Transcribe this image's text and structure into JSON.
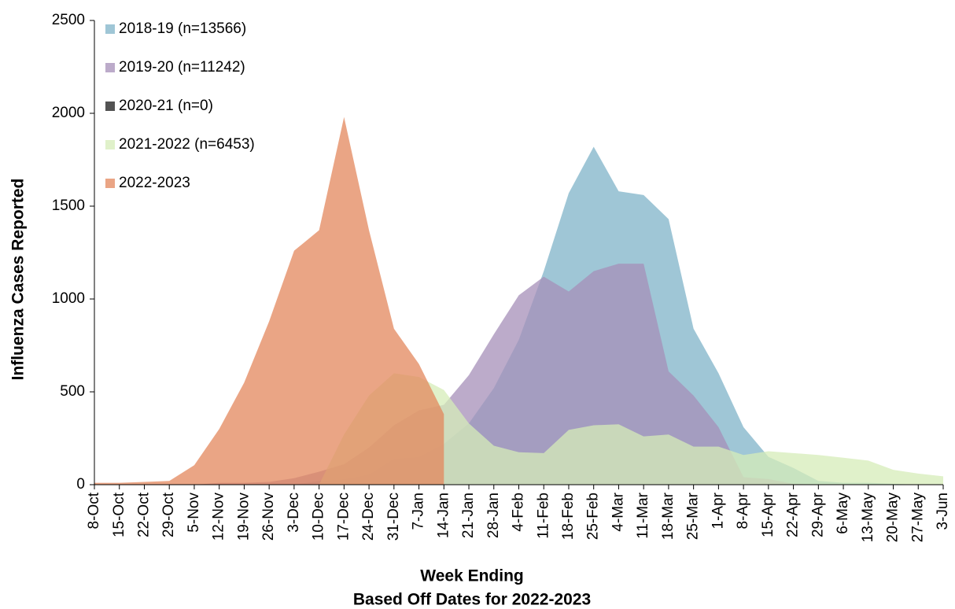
{
  "chart_data": {
    "type": "area",
    "ylabel": "Influenza Cases Reported",
    "xlabel": [
      "Week Ending",
      "Based Off Dates for 2022-2023"
    ],
    "categories": [
      "8-Oct",
      "15-Oct",
      "22-Oct",
      "29-Oct",
      "5-Nov",
      "12-Nov",
      "19-Nov",
      "26-Nov",
      "3-Dec",
      "10-Dec",
      "17-Dec",
      "24-Dec",
      "31-Dec",
      "7-Jan",
      "14-Jan",
      "21-Jan",
      "28-Jan",
      "4-Feb",
      "11-Feb",
      "18-Feb",
      "25-Feb",
      "4-Mar",
      "11-Mar",
      "18-Mar",
      "25-Mar",
      "1-Apr",
      "8-Apr",
      "15-Apr",
      "22-Apr",
      "29-Apr",
      "6-May",
      "13-May",
      "20-May",
      "27-May",
      "3-Jun"
    ],
    "ylim": [
      0,
      2500
    ],
    "yticks": [
      0,
      500,
      1000,
      1500,
      2000,
      2500
    ],
    "opacity": 0.75,
    "series": [
      {
        "name": "2018-19 (n=13566)",
        "color": "#7fb3c8",
        "values": [
          0,
          0,
          0,
          0,
          0,
          0,
          0,
          0,
          0,
          20,
          30,
          55,
          140,
          150,
          220,
          330,
          520,
          780,
          1150,
          1570,
          1820,
          1580,
          1560,
          1430,
          840,
          600,
          310,
          150,
          90,
          20,
          10,
          10,
          5,
          0,
          0
        ]
      },
      {
        "name": "2019-20 (n=11242)",
        "color": "#a58fb8",
        "values": [
          0,
          0,
          0,
          0,
          0,
          10,
          10,
          15,
          35,
          70,
          110,
          200,
          320,
          400,
          430,
          590,
          810,
          1020,
          1120,
          1040,
          1150,
          1190,
          1190,
          610,
          480,
          310,
          40,
          30,
          5,
          0,
          0,
          0,
          0,
          0,
          0
        ]
      },
      {
        "name": "2020-21 (n=0)",
        "color": "#1a1a1a",
        "values": [
          0,
          0,
          0,
          0,
          0,
          0,
          0,
          0,
          0,
          0,
          0,
          0,
          0,
          0,
          0,
          0,
          0,
          0,
          0,
          0,
          0,
          0,
          0,
          0,
          0,
          0,
          0,
          0,
          0,
          0,
          0,
          0,
          0,
          0,
          0
        ]
      },
      {
        "name": "2021-2022 (n=6453)",
        "color": "#d6ecb8",
        "values": [
          0,
          0,
          0,
          0,
          0,
          0,
          0,
          0,
          0,
          0,
          270,
          480,
          600,
          580,
          510,
          330,
          210,
          175,
          170,
          295,
          320,
          325,
          260,
          270,
          205,
          205,
          160,
          180,
          170,
          160,
          145,
          130,
          80,
          60,
          45
        ]
      },
      {
        "name": "2022-2023",
        "color": "#e3875c",
        "values": [
          10,
          10,
          15,
          20,
          105,
          300,
          550,
          880,
          1260,
          1370,
          1980,
          1370,
          840,
          650,
          380,
          null,
          null,
          null,
          null,
          null,
          null,
          null,
          null,
          null,
          null,
          null,
          null,
          null,
          null,
          null,
          null,
          null,
          null,
          null,
          null
        ]
      }
    ]
  }
}
